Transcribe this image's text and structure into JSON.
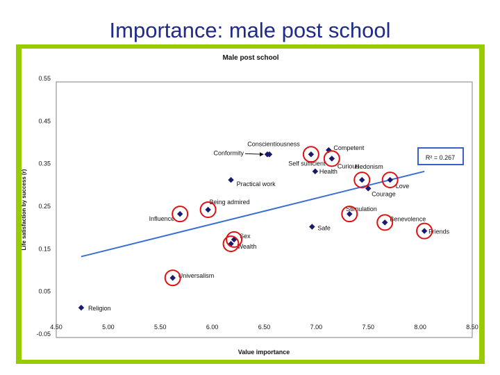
{
  "slide_title": "Importance: male post school",
  "chart_data": {
    "type": "scatter",
    "title": "Male post school",
    "xlabel": "Value importance",
    "ylabel": "Life satisfaction by success (r)",
    "xlim": [
      4.5,
      8.5
    ],
    "ylim": [
      -0.05,
      0.55
    ],
    "x_ticks": [
      "4.50",
      "5.00",
      "5.50",
      "6.00",
      "6.50",
      "7.00",
      "7.50",
      "8.00",
      "8.50"
    ],
    "y_ticks": [
      "0.55",
      "0.45",
      "0.35",
      "0.25",
      "0.15",
      "0.05",
      "-0.05"
    ],
    "grid": false,
    "points": [
      {
        "label": "Religion",
        "x": 4.74,
        "y": 0.02,
        "circled": false
      },
      {
        "label": "Universalism",
        "x": 5.62,
        "y": 0.09,
        "circled": true
      },
      {
        "label": "Influence",
        "x": 5.69,
        "y": 0.24,
        "circled": true
      },
      {
        "label": "Being admired",
        "x": 5.96,
        "y": 0.25,
        "circled": true
      },
      {
        "label": "Practical work",
        "x": 6.18,
        "y": 0.32,
        "circled": false
      },
      {
        "label": "Sex",
        "x": 6.21,
        "y": 0.18,
        "circled": true
      },
      {
        "label": "Wealth",
        "x": 6.18,
        "y": 0.17,
        "circled": true
      },
      {
        "label": "Conformity",
        "x": 6.53,
        "y": 0.38,
        "circled": false
      },
      {
        "label": "Conscientiousness",
        "x": 6.55,
        "y": 0.38,
        "circled": false
      },
      {
        "label": "Self sufficient",
        "x": 6.95,
        "y": 0.38,
        "circled": true
      },
      {
        "label": "Health",
        "x": 6.99,
        "y": 0.34,
        "circled": false
      },
      {
        "label": "Safe",
        "x": 6.96,
        "y": 0.21,
        "circled": false
      },
      {
        "label": "Competent",
        "x": 7.12,
        "y": 0.39,
        "circled": false
      },
      {
        "label": "Curious",
        "x": 7.15,
        "y": 0.37,
        "circled": true
      },
      {
        "label": "Stimulation",
        "x": 7.32,
        "y": 0.24,
        "circled": true
      },
      {
        "label": "Hedonism",
        "x": 7.44,
        "y": 0.32,
        "circled": true
      },
      {
        "label": "Courage",
        "x": 7.5,
        "y": 0.3,
        "circled": false
      },
      {
        "label": "Love",
        "x": 7.71,
        "y": 0.32,
        "circled": true
      },
      {
        "label": "Benevolence",
        "x": 7.66,
        "y": 0.22,
        "circled": true
      },
      {
        "label": "Friends",
        "x": 8.04,
        "y": 0.2,
        "circled": true
      }
    ],
    "trendline": {
      "x": [
        4.74,
        8.04
      ],
      "y": [
        0.14,
        0.34
      ]
    },
    "r_squared_label": "R² = 0.267",
    "colors": {
      "panel": "#99cc00",
      "marker": "#1a1a6e",
      "circle": "#e01010",
      "trend": "#3b6fd4",
      "rbox": "#3a5fcd"
    }
  }
}
